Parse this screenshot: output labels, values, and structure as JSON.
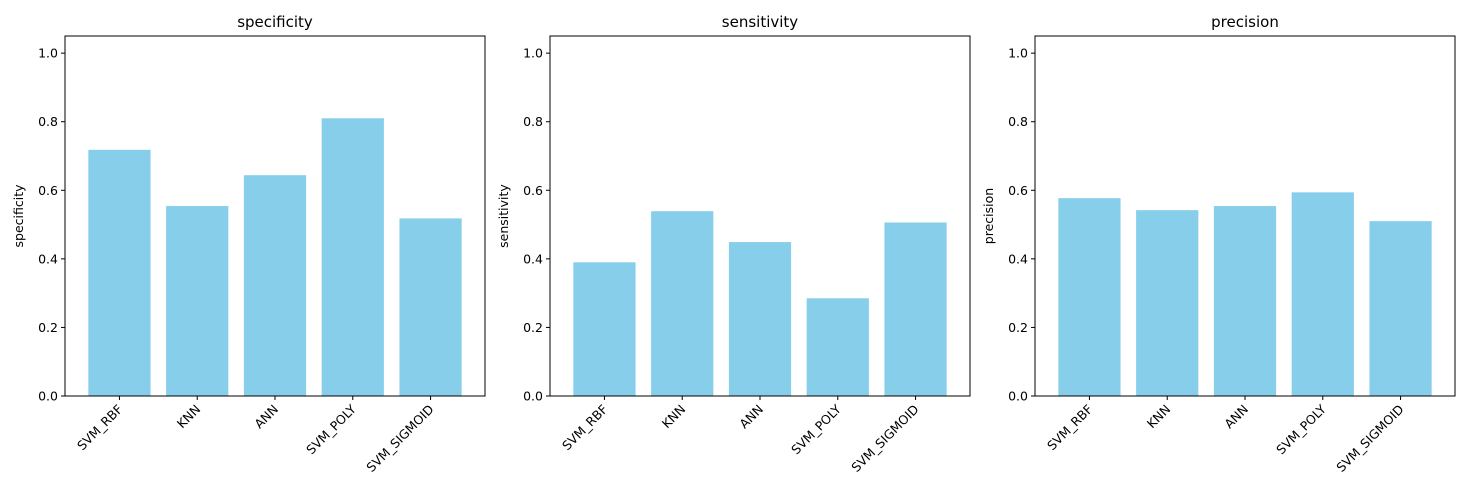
{
  "chart_data": [
    {
      "type": "bar",
      "title": "specificity",
      "xlabel": "",
      "ylabel": "specificity",
      "categories": [
        "SVM_RBF",
        "KNN",
        "ANN",
        "SVM_POLY",
        "SVM_SIGMOID"
      ],
      "values": [
        0.718,
        0.554,
        0.644,
        0.81,
        0.518
      ],
      "ylim": [
        0,
        1.05
      ],
      "yticks": [
        "0.0",
        "0.2",
        "0.4",
        "0.6",
        "0.8",
        "1.0"
      ],
      "color": "#87ceeb",
      "grid": false
    },
    {
      "type": "bar",
      "title": "sensitivity",
      "xlabel": "",
      "ylabel": "sensitivity",
      "categories": [
        "SVM_RBF",
        "KNN",
        "ANN",
        "SVM_POLY",
        "SVM_SIGMOID"
      ],
      "values": [
        0.39,
        0.539,
        0.449,
        0.285,
        0.506
      ],
      "ylim": [
        0,
        1.05
      ],
      "yticks": [
        "0.0",
        "0.2",
        "0.4",
        "0.6",
        "0.8",
        "1.0"
      ],
      "color": "#87ceeb",
      "grid": false
    },
    {
      "type": "bar",
      "title": "precision",
      "xlabel": "",
      "ylabel": "precision",
      "categories": [
        "SVM_RBF",
        "KNN",
        "ANN",
        "SVM_POLY",
        "SVM_SIGMOID"
      ],
      "values": [
        0.577,
        0.542,
        0.554,
        0.594,
        0.51
      ],
      "ylim": [
        0,
        1.05
      ],
      "yticks": [
        "0.0",
        "0.2",
        "0.4",
        "0.6",
        "0.8",
        "1.0"
      ],
      "color": "#87ceeb",
      "grid": false
    }
  ]
}
